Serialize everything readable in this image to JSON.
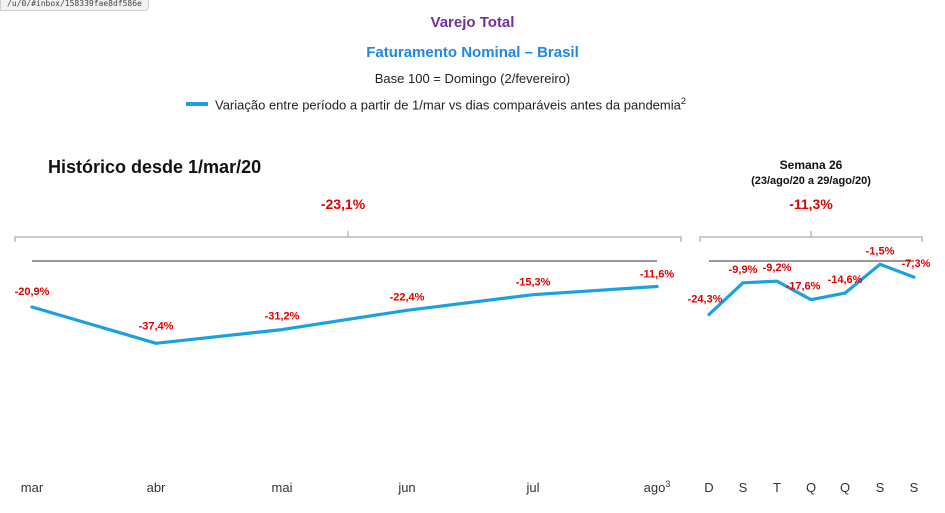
{
  "browser": {
    "url_fragment": "/u/0/#inbox/158339fae8df586e"
  },
  "header": {
    "title": "Varejo Total",
    "subtitle": "Faturamento Nominal – Brasil",
    "base": "Base 100 = Domingo (2/fevereiro)",
    "legend_text": "Variação entre período a partir de 1/mar vs dias comparáveis antes da pandemia",
    "legend_sup": "2"
  },
  "colors": {
    "line": "#1ba1e2",
    "labels": "#e00000",
    "title": "#7030a0",
    "subtitle": "#1e88e5"
  },
  "chart_data": [
    {
      "type": "line",
      "title": "Histórico desde 1/mar/20",
      "summary": "-23,1%",
      "categories": [
        "mar",
        "abr",
        "mai",
        "jun",
        "jul",
        "ago"
      ],
      "last_category_sup": "3",
      "values": [
        -20.9,
        -37.4,
        -31.2,
        -22.4,
        -15.3,
        -11.6
      ],
      "labels": [
        "-20,9%",
        "-37,4%",
        "-31,2%",
        "-22,4%",
        "-15,3%",
        "-11,6%"
      ]
    },
    {
      "type": "line",
      "title": "Semana 26",
      "period": "(23/ago/20 a 29/ago/20)",
      "summary": "-11,3%",
      "categories": [
        "D",
        "S",
        "T",
        "Q",
        "Q",
        "S",
        "S"
      ],
      "values": [
        -24.3,
        -9.9,
        -9.2,
        -17.6,
        -14.6,
        -1.5,
        -7.3
      ],
      "labels": [
        "-24,3%",
        "-9,9%",
        "-9,2%",
        "-17,6%",
        "-14,6%",
        "-1,5%",
        "-7,3%"
      ]
    }
  ]
}
